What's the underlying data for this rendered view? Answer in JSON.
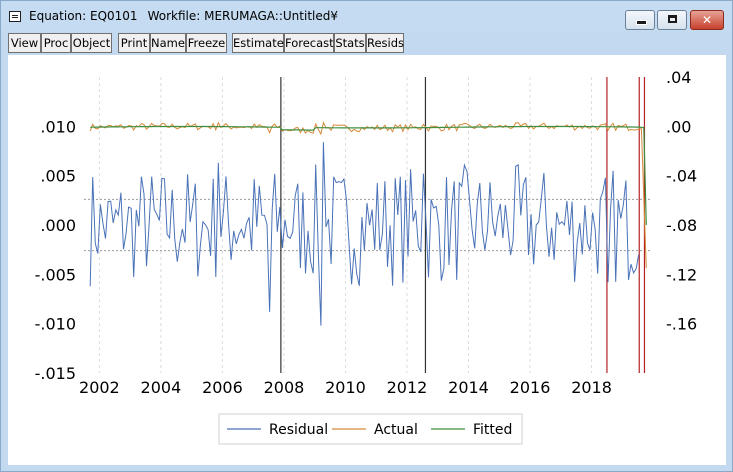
{
  "window": {
    "title": "Equation: EQ0101",
    "workfile": "Workfile: MERUMAGA::Untitled¥",
    "controls": {
      "minimize": "minimize-icon",
      "maximize": "maximize-icon",
      "close": "✕"
    }
  },
  "toolbar": {
    "buttons": [
      "View",
      "Proc",
      "Object",
      "Print",
      "Name",
      "Freeze",
      "Estimate",
      "Forecast",
      "Stats",
      "Resids"
    ]
  },
  "chart_data": {
    "type": "line",
    "x_ticks": [
      "2002",
      "2004",
      "2006",
      "2008",
      "2010",
      "2012",
      "2014",
      "2016",
      "2018"
    ],
    "x_range": [
      2001.5,
      2019.9
    ],
    "left_axis": {
      "ticks": [
        ".010",
        ".005",
        ".000",
        "-.005",
        "-.010",
        "-.015"
      ],
      "range": [
        -0.015,
        0.015
      ]
    },
    "right_axis": {
      "ticks": [
        ".04",
        ".00",
        "-.04",
        "-.08",
        "-.12",
        "-.16"
      ],
      "range": [
        -0.2,
        0.04
      ]
    },
    "reference_bands": [
      0.0026,
      -0.0026
    ],
    "vertical_markers": [
      {
        "x": 2007.9,
        "color": "#333333"
      },
      {
        "x": 2012.6,
        "color": "#333333"
      },
      {
        "x": 2018.5,
        "color": "#b22222"
      },
      {
        "x": 2019.55,
        "color": "#b22222"
      },
      {
        "x": 2019.72,
        "color": "#b22222"
      }
    ],
    "series": [
      {
        "name": "Residual",
        "axis": "left",
        "color": "#4a72b8"
      },
      {
        "name": "Actual",
        "axis": "right",
        "color": "#d7893a"
      },
      {
        "name": "Fitted",
        "axis": "right",
        "color": "#3f8f3f"
      }
    ],
    "residual_highlights": [
      {
        "x": 2009.3,
        "y": 0.0084
      },
      {
        "x": 2009.2,
        "y": -0.0102
      },
      {
        "x": 2007.5,
        "y": -0.0088
      },
      {
        "x": 2005.9,
        "y": 0.0063
      },
      {
        "x": 2012.5,
        "y": 0.0052
      },
      {
        "x": 2018.5,
        "y": -0.0058
      },
      {
        "x": 2019.6,
        "y": -0.003
      }
    ],
    "actual_final_drop": -0.115,
    "fitted_final_drop": -0.08
  }
}
